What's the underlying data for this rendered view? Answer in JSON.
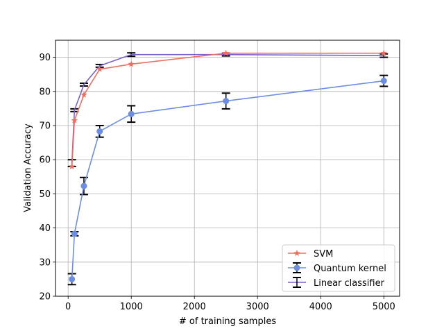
{
  "chart_data": {
    "type": "line",
    "xlabel": "# of training samples",
    "ylabel": "Validation Accuracy",
    "xlim": [
      -200,
      5250
    ],
    "ylim": [
      20,
      95
    ],
    "xticks": [
      0,
      1000,
      2000,
      3000,
      4000,
      5000
    ],
    "yticks": [
      20,
      30,
      40,
      50,
      60,
      70,
      80,
      90
    ],
    "grid": true,
    "legend_position": "lower-right",
    "x": [
      60,
      100,
      250,
      500,
      1000,
      2500,
      5000
    ],
    "series": [
      {
        "name": "SVM",
        "color": "#ef6f5f",
        "marker": "star",
        "values": [
          58.0,
          71.5,
          79.0,
          86.5,
          88.0,
          91.2,
          91.2
        ],
        "errors": null
      },
      {
        "name": "Quantum kernel",
        "color": "#6b8de3",
        "marker": "circle",
        "values": [
          25.0,
          38.3,
          52.3,
          68.3,
          73.4,
          77.2,
          83.1
        ],
        "errors": [
          1.6,
          0.6,
          2.5,
          1.7,
          2.4,
          2.3,
          1.6
        ]
      },
      {
        "name": "Linear classifier",
        "color": "#7b5fcf",
        "marker": "none",
        "values": [
          59.0,
          74.5,
          82.0,
          87.5,
          90.8,
          90.8,
          90.5
        ],
        "errors": [
          1.0,
          0.4,
          0.4,
          0.4,
          0.5,
          0.4,
          0.5
        ]
      }
    ]
  }
}
